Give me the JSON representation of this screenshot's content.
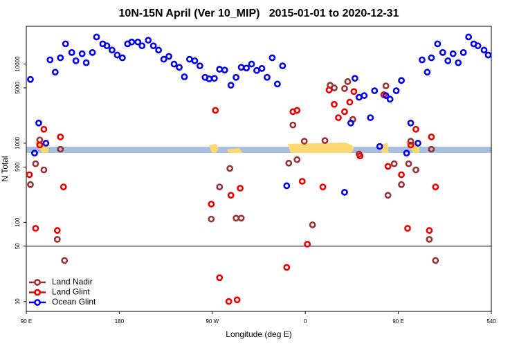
{
  "chart_data": {
    "type": "scatter",
    "title": "10N-15N April (Ver 10_MIP)   2015-01-01 to 2020-12-31",
    "xlabel": "Longitude (deg E)",
    "ylabel": "N Total",
    "log_y": true,
    "xlim": [
      90,
      540
    ],
    "ylim": [
      7.5,
      30000
    ],
    "xticks": [
      {
        "value": 90,
        "label": "90 E"
      },
      180,
      {
        "value": 270,
        "label": "90 W"
      },
      {
        "value": 360,
        "label": "0"
      },
      {
        "value": 450,
        "label": "90 E"
      },
      540
    ],
    "yticks": [
      10,
      50,
      100,
      500,
      1000,
      5000,
      10000
    ],
    "hline": 50,
    "legend": "lower left",
    "series": [
      {
        "name": "Land Nadir",
        "color": "#993333",
        "x": [
          94,
          99,
          103,
          107,
          120,
          123,
          127,
          269,
          277,
          287,
          293,
          298,
          344,
          348,
          352,
          359,
          367,
          379,
          384,
          388,
          398,
          401,
          406,
          412,
          438,
          440,
          446,
          453,
          460,
          462,
          467,
          480,
          482,
          486
        ],
        "values": [
          300,
          550,
          1100,
          460,
          61,
          840,
          33,
          110,
          280,
          480,
          113,
          113,
          560,
          1700,
          620,
          1060,
          93,
          1080,
          5400,
          5000,
          4900,
          6000,
          2000,
          730,
          5300,
          220,
          550,
          300,
          550,
          1060,
          460,
          61,
          840,
          33
        ]
      },
      {
        "name": "Land Glint",
        "color": "#ee0000",
        "x": [
          93,
          99,
          103,
          107,
          120,
          123,
          126,
          269,
          273,
          277,
          286,
          288,
          294,
          297,
          342,
          348,
          352,
          357,
          362,
          377,
          383,
          388,
          392,
          398,
          403,
          407,
          413,
          436,
          440,
          453,
          459,
          462,
          467,
          480,
          482,
          486
        ],
        "values": [
          400,
          84,
          950,
          1500,
          79,
          1200,
          280,
          170,
          2600,
          20,
          10,
          220,
          10.5,
          270,
          27,
          2500,
          2600,
          330,
          53,
          280,
          4700,
          3100,
          2100,
          2500,
          3300,
          4500,
          690,
          4100,
          510,
          400,
          84,
          950,
          1500,
          79,
          1200,
          280
        ]
      },
      {
        "name": "Ocean Glint",
        "color": "#0000ee",
        "x": [
          94,
          98,
          102,
          109,
          113,
          118,
          123,
          128,
          134,
          138,
          144,
          148,
          154,
          158,
          164,
          168,
          173,
          178,
          183,
          188,
          192,
          198,
          202,
          208,
          213,
          218,
          223,
          228,
          233,
          238,
          243,
          248,
          253,
          258,
          263,
          267,
          272,
          277,
          282,
          288,
          293,
          298,
          303,
          308,
          313,
          318,
          323,
          328,
          333,
          338,
          342,
          398,
          404,
          408,
          412,
          417,
          423,
          427,
          432,
          438,
          442,
          448,
          453,
          458,
          462,
          469,
          473,
          478,
          482,
          488,
          493,
          498,
          503,
          508,
          513,
          518,
          523,
          527,
          533,
          537
        ],
        "values": [
          6400,
          750,
          1800,
          1000,
          11300,
          7900,
          12000,
          18000,
          14000,
          11000,
          13500,
          10400,
          14000,
          22000,
          18000,
          17000,
          15000,
          13000,
          12000,
          18000,
          19000,
          19000,
          17000,
          20000,
          17000,
          15000,
          11500,
          12500,
          10000,
          9100,
          6900,
          11500,
          11000,
          9500,
          6800,
          6500,
          6600,
          8600,
          8400,
          5400,
          6800,
          9100,
          8900,
          10000,
          8300,
          8800,
          6800,
          12000,
          5600,
          9500,
          290,
          240,
          1800,
          6600,
          3800,
          4000,
          2100,
          4600,
          910,
          4000,
          3600,
          4600,
          6200,
          750,
          1800,
          1000,
          11300,
          7900,
          12000,
          18000,
          14000,
          11000,
          13500,
          10400,
          14000,
          22000,
          18000,
          17000,
          15000,
          13000
        ]
      }
    ]
  }
}
